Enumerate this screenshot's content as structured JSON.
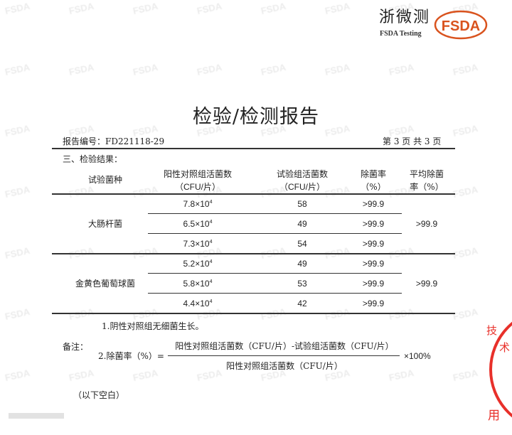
{
  "logo": {
    "company_cn": "浙微测",
    "company_en": "FSDA Testing",
    "badge": "FSDA",
    "brand_color": "#d9531e"
  },
  "watermark": "FSDA",
  "title": "检验/检测报告",
  "report_no": "报告编号：FD221118-29",
  "page_info": "第 3 页 共 3 页",
  "section": "三、检验结果：",
  "table": {
    "headers": [
      {
        "line1": "试验菌种",
        "line2": ""
      },
      {
        "line1": "阳性对照组活菌数",
        "line2": "（CFU/片）"
      },
      {
        "line1": "试验组活菌数",
        "line2": "（CFU/片）"
      },
      {
        "line1": "除菌率",
        "line2": "（%）"
      },
      {
        "line1": "平均除菌",
        "line2": "率（%）"
      }
    ],
    "groups": [
      {
        "species": "大肠杆菌",
        "average": ">99.9",
        "rows": [
          {
            "positive_base": "7.8×10",
            "positive_exp": "4",
            "test": "58",
            "rate": ">99.9"
          },
          {
            "positive_base": "6.5×10",
            "positive_exp": "4",
            "test": "49",
            "rate": ">99.9"
          },
          {
            "positive_base": "7.3×10",
            "positive_exp": "4",
            "test": "54",
            "rate": ">99.9"
          }
        ]
      },
      {
        "species": "金黄色葡萄球菌",
        "average": ">99.9",
        "rows": [
          {
            "positive_base": "5.2×10",
            "positive_exp": "4",
            "test": "49",
            "rate": ">99.9"
          },
          {
            "positive_base": "5.8×10",
            "positive_exp": "4",
            "test": "53",
            "rate": ">99.9"
          },
          {
            "positive_base": "4.4×10",
            "positive_exp": "4",
            "test": "42",
            "rate": ">99.9"
          }
        ]
      }
    ]
  },
  "notes": {
    "label": "备注：",
    "note1": "1.阴性对照组无细菌生长。",
    "note2_prefix": "2.除菌率（%）=",
    "numerator": "阳性对照组活菌数（CFU/片）-试验组活菌数（CFU/片）",
    "denominator": "阳性对照组活菌数（CFU/片）",
    "suffix": "×100%"
  },
  "blank_note": "（以下空白）",
  "stamp_color": "#e8302a"
}
